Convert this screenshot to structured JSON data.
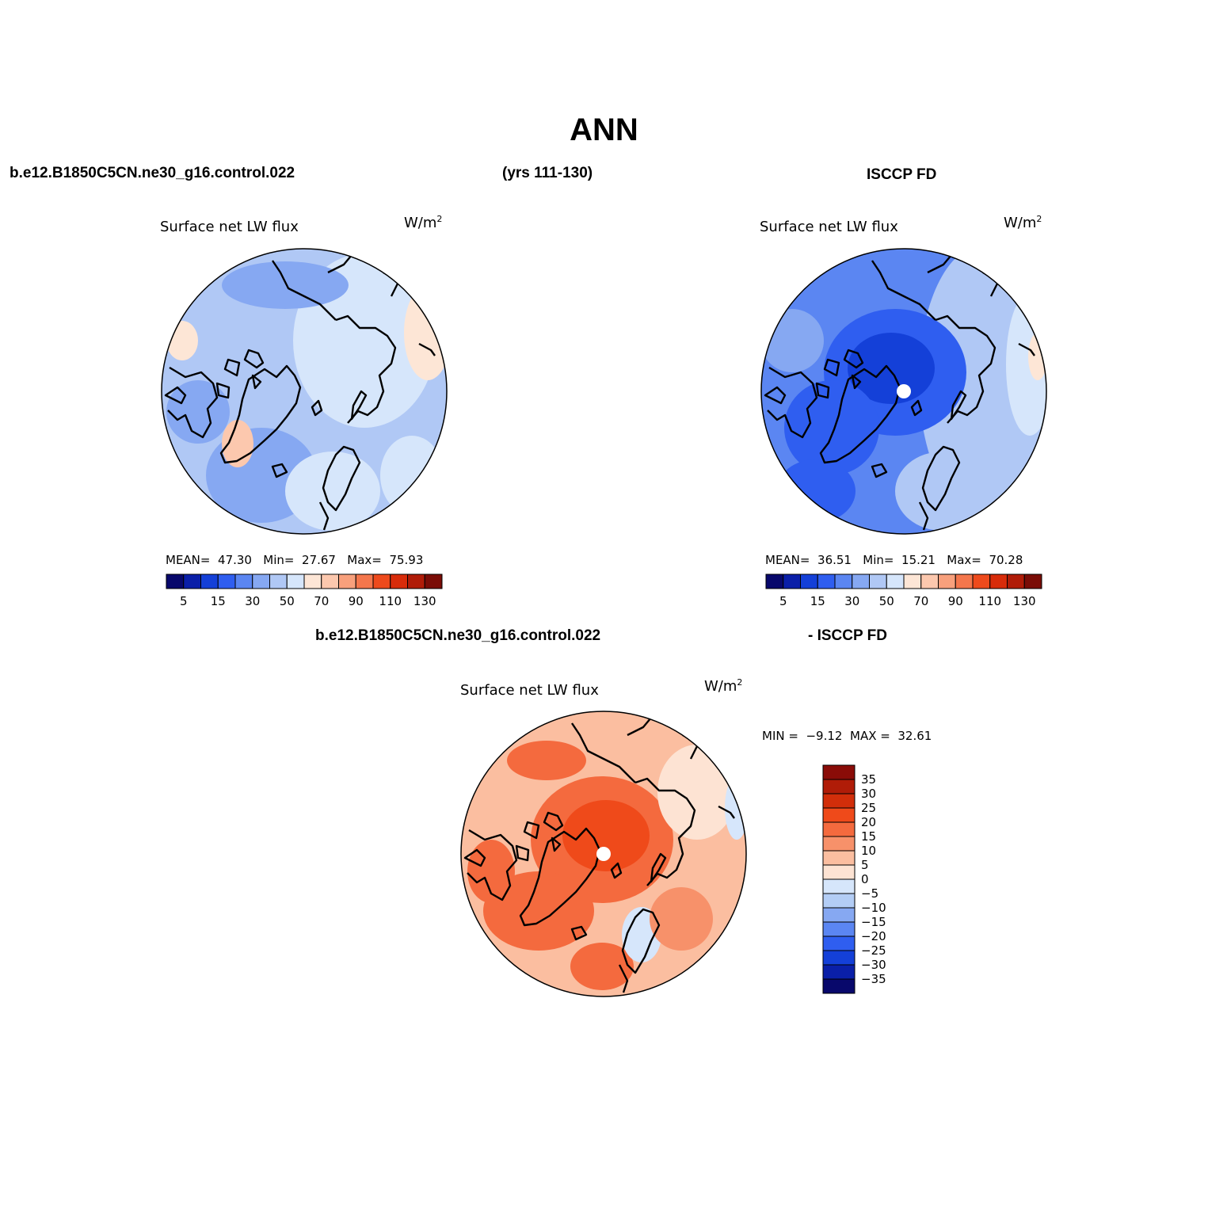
{
  "title": "ANN",
  "header": {
    "case_name": "b.e12.B1850C5CN.ne30_g16.control.022",
    "years": "(yrs 111-130)",
    "obs_name": "ISCCP FD",
    "diff_case": "b.e12.B1850C5CN.ne30_g16.control.022",
    "diff_obs": "- ISCCP FD"
  },
  "colors": {
    "abs_scale": [
      "#08086b",
      "#0a1fa8",
      "#1440d8",
      "#2f5ef0",
      "#5b86f2",
      "#86a8f2",
      "#b0c8f5",
      "#d6e6fb",
      "#fde6d6",
      "#fcc8ae",
      "#f8a07c",
      "#f4764c",
      "#ee4a1c",
      "#d82c0a",
      "#b01c08",
      "#7a0c06"
    ],
    "diff_scale": [
      "#8a0c08",
      "#b01c08",
      "#d22e0a",
      "#ef4a1a",
      "#f46a3e",
      "#f7916a",
      "#fbbea0",
      "#fde3d3",
      "#d6e6fb",
      "#b3cdf5",
      "#86a8f2",
      "#5b86f2",
      "#2f5ef0",
      "#1440d8",
      "#0a1fa8",
      "#08086b"
    ]
  },
  "panels": {
    "model": {
      "variable": "Surface net LW flux",
      "units": "W/m",
      "units_sup": "2",
      "mean_label": "MEAN=",
      "mean": "47.30",
      "min_label": "Min=",
      "min": "27.67",
      "max_label": "Max=",
      "max": "75.93",
      "ticks": [
        "5",
        "15",
        "30",
        "50",
        "70",
        "90",
        "110",
        "130"
      ]
    },
    "obs": {
      "variable": "Surface net LW flux",
      "units": "W/m",
      "units_sup": "2",
      "mean_label": "MEAN=",
      "mean": "36.51",
      "min_label": "Min=",
      "min": "15.21",
      "max_label": "Max=",
      "max": "70.28",
      "ticks": [
        "5",
        "15",
        "30",
        "50",
        "70",
        "90",
        "110",
        "130"
      ]
    },
    "diff": {
      "variable": "Surface net LW flux",
      "units": "W/m",
      "units_sup": "2",
      "min_label": "MIN =",
      "min": "−9.12",
      "max_label": "MAX =",
      "max": "32.61",
      "ticks": [
        "35",
        "30",
        "25",
        "20",
        "15",
        "10",
        "5",
        "0",
        "−5",
        "−10",
        "−15",
        "−20",
        "−25",
        "−30",
        "−35"
      ]
    }
  }
}
